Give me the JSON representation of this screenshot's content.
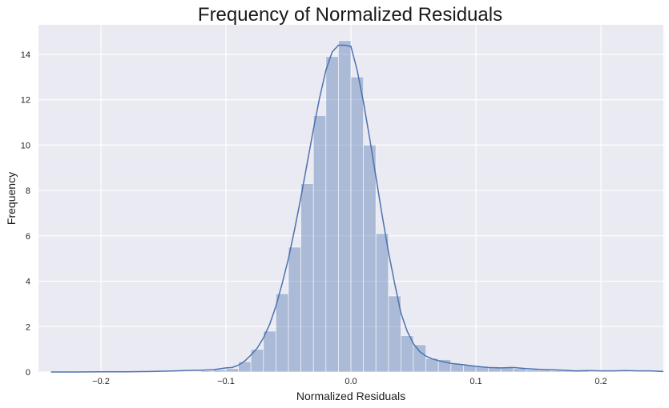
{
  "chart_data": {
    "type": "bar",
    "title": "Frequency of Normalized Residuals",
    "xlabel": "Normalized Residuals",
    "ylabel": "Frequency",
    "xlim": [
      -0.25,
      0.25
    ],
    "ylim": [
      0,
      15.3
    ],
    "xticks": [
      -0.2,
      -0.1,
      0.0,
      0.1,
      0.2
    ],
    "xtick_labels": [
      "−0.2",
      "−0.1",
      "0.0",
      "0.1",
      "0.2"
    ],
    "yticks": [
      0,
      2,
      4,
      6,
      8,
      10,
      12,
      14
    ],
    "ytick_labels": [
      "0",
      "2",
      "4",
      "6",
      "8",
      "10",
      "12",
      "14"
    ],
    "grid": true,
    "background": "#eaeaf2",
    "bar_color": "#4c72b0",
    "line_color": "#4c72b0",
    "histogram": {
      "bin_width": 0.01,
      "bins": [
        {
          "x0": -0.12,
          "x1": -0.11,
          "value": 0.05
        },
        {
          "x0": -0.11,
          "x1": -0.1,
          "value": 0.1
        },
        {
          "x0": -0.1,
          "x1": -0.09,
          "value": 0.15
        },
        {
          "x0": -0.09,
          "x1": -0.08,
          "value": 0.45
        },
        {
          "x0": -0.08,
          "x1": -0.07,
          "value": 1.0
        },
        {
          "x0": -0.07,
          "x1": -0.06,
          "value": 1.8
        },
        {
          "x0": -0.06,
          "x1": -0.05,
          "value": 3.45
        },
        {
          "x0": -0.05,
          "x1": -0.04,
          "value": 5.5
        },
        {
          "x0": -0.04,
          "x1": -0.03,
          "value": 8.3
        },
        {
          "x0": -0.03,
          "x1": -0.02,
          "value": 11.3
        },
        {
          "x0": -0.02,
          "x1": -0.01,
          "value": 13.9
        },
        {
          "x0": -0.01,
          "x1": 0.0,
          "value": 14.6
        },
        {
          "x0": 0.0,
          "x1": 0.01,
          "value": 13.0
        },
        {
          "x0": 0.01,
          "x1": 0.02,
          "value": 10.0
        },
        {
          "x0": 0.02,
          "x1": 0.03,
          "value": 6.1
        },
        {
          "x0": 0.03,
          "x1": 0.04,
          "value": 3.35
        },
        {
          "x0": 0.04,
          "x1": 0.05,
          "value": 1.6
        },
        {
          "x0": 0.05,
          "x1": 0.06,
          "value": 1.2
        },
        {
          "x0": 0.06,
          "x1": 0.07,
          "value": 0.6
        },
        {
          "x0": 0.07,
          "x1": 0.08,
          "value": 0.55
        },
        {
          "x0": 0.08,
          "x1": 0.09,
          "value": 0.35
        },
        {
          "x0": 0.09,
          "x1": 0.1,
          "value": 0.3
        },
        {
          "x0": 0.1,
          "x1": 0.11,
          "value": 0.25
        },
        {
          "x0": 0.11,
          "x1": 0.12,
          "value": 0.2
        },
        {
          "x0": 0.12,
          "x1": 0.13,
          "value": 0.2
        },
        {
          "x0": 0.13,
          "x1": 0.14,
          "value": 0.15
        },
        {
          "x0": 0.14,
          "x1": 0.15,
          "value": 0.1
        },
        {
          "x0": 0.15,
          "x1": 0.16,
          "value": 0.08
        },
        {
          "x0": 0.16,
          "x1": 0.17,
          "value": 0.06
        },
        {
          "x0": 0.17,
          "x1": 0.18,
          "value": 0.06
        },
        {
          "x0": 0.18,
          "x1": 0.19,
          "value": 0.05
        }
      ]
    },
    "kde": {
      "x": [
        -0.24,
        -0.22,
        -0.2,
        -0.18,
        -0.16,
        -0.14,
        -0.13,
        -0.12,
        -0.11,
        -0.1,
        -0.095,
        -0.09,
        -0.085,
        -0.08,
        -0.075,
        -0.07,
        -0.065,
        -0.06,
        -0.055,
        -0.05,
        -0.045,
        -0.04,
        -0.035,
        -0.03,
        -0.025,
        -0.02,
        -0.015,
        -0.01,
        -0.005,
        0.0,
        0.005,
        0.01,
        0.015,
        0.02,
        0.025,
        0.03,
        0.035,
        0.04,
        0.045,
        0.05,
        0.055,
        0.06,
        0.065,
        0.07,
        0.08,
        0.09,
        0.1,
        0.11,
        0.12,
        0.13,
        0.14,
        0.15,
        0.16,
        0.17,
        0.18,
        0.19,
        0.2,
        0.21,
        0.22,
        0.23,
        0.24,
        0.25
      ],
      "y": [
        0.0,
        0.0,
        0.01,
        0.01,
        0.02,
        0.05,
        0.07,
        0.08,
        0.1,
        0.18,
        0.2,
        0.3,
        0.48,
        0.75,
        1.05,
        1.5,
        2.1,
        2.9,
        3.9,
        5.0,
        6.3,
        7.7,
        9.2,
        10.7,
        12.1,
        13.3,
        14.1,
        14.4,
        14.4,
        14.35,
        13.3,
        11.9,
        10.3,
        8.6,
        6.9,
        5.3,
        3.9,
        2.6,
        1.8,
        1.25,
        0.9,
        0.7,
        0.58,
        0.5,
        0.38,
        0.32,
        0.25,
        0.2,
        0.18,
        0.2,
        0.15,
        0.12,
        0.1,
        0.08,
        0.05,
        0.06,
        0.05,
        0.05,
        0.06,
        0.05,
        0.05,
        0.02
      ]
    }
  }
}
